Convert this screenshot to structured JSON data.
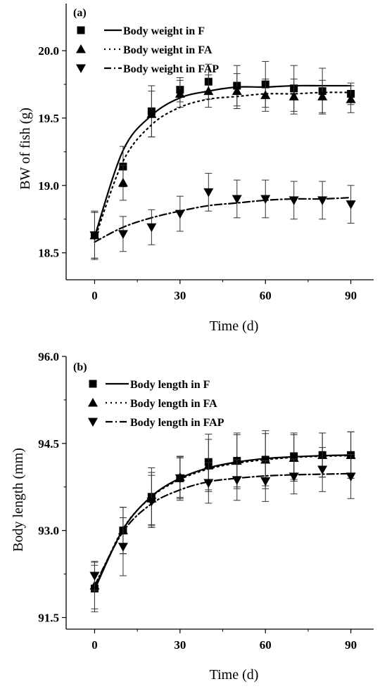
{
  "chart_data": [
    {
      "type": "scatter",
      "panel_label": "(a)",
      "xlabel": "Time (d)",
      "ylabel": "BW of fish (g)",
      "xlim": [
        -10,
        98
      ],
      "ylim": [
        18.3,
        20.35
      ],
      "xticks": [
        "0",
        "30",
        "60",
        "90"
      ],
      "yticks": [
        "18.5",
        "19.0",
        "19.5",
        "20.0"
      ],
      "x": [
        0,
        10,
        20,
        30,
        40,
        50,
        60,
        70,
        80,
        90
      ],
      "legend_position": "top-left",
      "series": [
        {
          "name": "Body weight in F",
          "marker": "square",
          "line_style": "solid",
          "values": [
            18.63,
            19.14,
            19.55,
            19.71,
            19.77,
            19.74,
            19.75,
            19.72,
            19.7,
            19.68
          ],
          "errors": [
            0.17,
            0.15,
            0.19,
            0.09,
            0.13,
            0.15,
            0.17,
            0.17,
            0.17,
            0.08
          ],
          "fit": [
            18.62,
            19.26,
            19.52,
            19.65,
            19.7,
            19.73,
            19.73,
            19.74,
            19.74,
            19.74
          ]
        },
        {
          "name": "Body weight in FA",
          "marker": "triangle-up",
          "line_style": "dotted",
          "values": [
            18.63,
            19.02,
            19.53,
            19.68,
            19.7,
            19.7,
            19.67,
            19.66,
            19.66,
            19.64
          ],
          "errors": [
            0.17,
            0.13,
            0.17,
            0.1,
            0.12,
            0.13,
            0.12,
            0.13,
            0.12,
            0.1
          ],
          "fit": [
            18.6,
            19.18,
            19.45,
            19.58,
            19.64,
            19.66,
            19.68,
            19.68,
            19.69,
            19.69
          ]
        },
        {
          "name": "Body weight in FAP",
          "marker": "triangle-down",
          "line_style": "dashdot",
          "values": [
            18.63,
            18.64,
            18.69,
            18.79,
            18.95,
            18.9,
            18.9,
            18.89,
            18.89,
            18.86
          ],
          "errors": [
            0.18,
            0.13,
            0.13,
            0.13,
            0.14,
            0.14,
            0.14,
            0.14,
            0.14,
            0.14
          ],
          "fit": [
            18.58,
            18.69,
            18.76,
            18.81,
            18.85,
            18.87,
            18.89,
            18.9,
            18.9,
            18.91
          ]
        }
      ]
    },
    {
      "type": "scatter",
      "panel_label": "(b)",
      "xlabel": "Time (d)",
      "ylabel": "Body length (mm)",
      "xlim": [
        -10,
        98
      ],
      "ylim": [
        91.3,
        96.0
      ],
      "xticks": [
        "0",
        "30",
        "60",
        "90"
      ],
      "yticks": [
        "91.5",
        "93.0",
        "94.5",
        "96.0"
      ],
      "x": [
        0,
        10,
        20,
        30,
        40,
        50,
        60,
        70,
        80,
        90
      ],
      "legend_position": "top-left",
      "series": [
        {
          "name": "Body length in F",
          "marker": "square",
          "line_style": "solid",
          "values": [
            92.0,
            93.0,
            93.58,
            93.9,
            94.18,
            94.2,
            94.22,
            94.28,
            94.3,
            94.3
          ],
          "errors": [
            0.4,
            0.4,
            0.5,
            0.35,
            0.48,
            0.48,
            0.5,
            0.4,
            0.38,
            0.4
          ],
          "fit": [
            91.98,
            93.02,
            93.59,
            93.9,
            94.08,
            94.18,
            94.24,
            94.27,
            94.29,
            94.3
          ]
        },
        {
          "name": "Body length in FA",
          "marker": "triangle-up",
          "line_style": "dotted",
          "values": [
            92.05,
            93.0,
            93.55,
            93.92,
            94.12,
            94.2,
            94.22,
            94.25,
            94.3,
            94.3
          ],
          "errors": [
            0.4,
            0.4,
            0.45,
            0.35,
            0.45,
            0.45,
            0.45,
            0.4,
            0.38,
            0.4
          ],
          "fit": [
            92.0,
            93.03,
            93.58,
            93.88,
            94.06,
            94.16,
            94.22,
            94.26,
            94.28,
            94.29
          ]
        },
        {
          "name": "Body length in FAP",
          "marker": "triangle-down",
          "line_style": "dashdot",
          "values": [
            92.22,
            92.72,
            93.5,
            93.9,
            93.82,
            93.87,
            93.85,
            93.93,
            94.05,
            93.93
          ],
          "errors": [
            0.25,
            0.5,
            0.45,
            0.38,
            0.35,
            0.35,
            0.35,
            0.3,
            0.38,
            0.38
          ],
          "fit": [
            92.05,
            92.98,
            93.46,
            93.7,
            93.84,
            93.9,
            93.94,
            93.96,
            93.97,
            93.98
          ]
        }
      ]
    }
  ]
}
